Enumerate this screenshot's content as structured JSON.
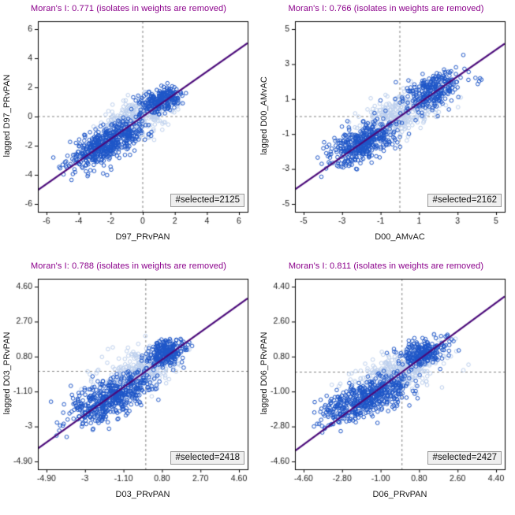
{
  "colors": {
    "title": "#8B008B",
    "regression": "#4B0A7A",
    "ref_line": "#808080",
    "frame": "#000000",
    "tick_text": "#1a1a1a"
  },
  "chart_data": [
    {
      "type": "scatter",
      "title": "Moran's I: 0.771 (isolates in weights are removed)",
      "moran_i": 0.771,
      "xlabel": "D97_PRvPAN",
      "ylabel": "lagged D97_PRvPAN",
      "xlim": [
        -6,
        6
      ],
      "ylim": [
        -6,
        6
      ],
      "xtick_values": [
        -6,
        -4,
        -2,
        0,
        2,
        4,
        6
      ],
      "xtick_labels": [
        "-6",
        "-4",
        "-2",
        "0",
        "2",
        "4",
        "6"
      ],
      "ytick_values": [
        -6,
        -4,
        -2,
        0,
        2,
        4,
        6
      ],
      "ytick_labels": [
        "-6",
        "-4",
        "-2",
        "0",
        "2",
        "4",
        "6"
      ],
      "ref_lines": {
        "x": 0,
        "y": 0
      },
      "regression": {
        "slope": 0.771,
        "intercept": 0
      },
      "grid": false,
      "legend": false,
      "selected_count": 2125,
      "selected_label": "#selected=2125",
      "series": [
        {
          "name": "unselected",
          "color": "#bdd0ee",
          "clusters": [
            {
              "cx": -0.3,
              "cy": 0.0,
              "sx": 1.15,
              "sy": 0.7,
              "rho": 0.5,
              "n": 320
            }
          ]
        },
        {
          "name": "selected",
          "color": "#1e56c8",
          "clusters": [
            {
              "cx": -2.5,
              "cy": -2.0,
              "sx": 1.05,
              "sy": 0.8,
              "rho": 0.6,
              "n": 420
            },
            {
              "cx": 1.2,
              "cy": 1.15,
              "sx": 0.6,
              "sy": 0.42,
              "rho": 0.35,
              "n": 240
            },
            {
              "cx": -0.9,
              "cy": -1.2,
              "sx": 0.7,
              "sy": 0.5,
              "rho": 0.4,
              "n": 90
            }
          ]
        }
      ]
    },
    {
      "type": "scatter",
      "title": "Moran's I: 0.766 (isolates in weights are removed)",
      "moran_i": 0.766,
      "xlabel": "D00_AMvAC",
      "ylabel": "lagged D00_AMvAC",
      "xlim": [
        -5,
        5
      ],
      "ylim": [
        -5,
        5
      ],
      "xtick_values": [
        -5,
        -3,
        -1,
        1,
        3,
        5
      ],
      "xtick_labels": [
        "-5",
        "-3",
        "-1",
        "1",
        "3",
        "5"
      ],
      "ytick_values": [
        -5,
        -3,
        -1,
        1,
        3,
        5
      ],
      "ytick_labels": [
        "-5",
        "-3",
        "-1",
        "1",
        "3",
        "5"
      ],
      "ref_lines": {
        "x": 0,
        "y": 0
      },
      "regression": {
        "slope": 0.766,
        "intercept": 0
      },
      "grid": false,
      "legend": false,
      "selected_count": 2162,
      "selected_label": "#selected=2162",
      "series": [
        {
          "name": "unselected",
          "color": "#bdd0ee",
          "clusters": [
            {
              "cx": 0.0,
              "cy": 0.15,
              "sx": 1.0,
              "sy": 0.65,
              "rho": 0.45,
              "n": 300
            }
          ]
        },
        {
          "name": "selected",
          "color": "#1e56c8",
          "clusters": [
            {
              "cx": -1.9,
              "cy": -1.5,
              "sx": 0.85,
              "sy": 0.6,
              "rho": 0.55,
              "n": 400
            },
            {
              "cx": 1.7,
              "cy": 1.5,
              "sx": 0.75,
              "sy": 0.6,
              "rho": 0.5,
              "n": 260
            },
            {
              "cx": 4.0,
              "cy": 2.1,
              "sx": 0.25,
              "sy": 0.2,
              "rho": 0.0,
              "n": 5
            }
          ]
        }
      ]
    },
    {
      "type": "scatter",
      "title": "Moran's I: 0.788 (isolates in weights are removed)",
      "moran_i": 0.788,
      "xlabel": "D03_PRvPAN",
      "ylabel": "lagged D03_PRvPAN",
      "xlim": [
        -4.9,
        4.6
      ],
      "ylim": [
        -4.9,
        4.6
      ],
      "xtick_values": [
        -4.9,
        -3,
        -1.1,
        0.8,
        2.7,
        4.6
      ],
      "xtick_labels": [
        "-4.90",
        "-3",
        "-1.10",
        "0.80",
        "2.70",
        "4.60"
      ],
      "ytick_values": [
        -4.9,
        -3,
        -1.1,
        0.8,
        2.7,
        4.6
      ],
      "ytick_labels": [
        "-4.90",
        "-3",
        "-1.10",
        "0.80",
        "2.70",
        "4.60"
      ],
      "ref_lines": {
        "x": 0,
        "y": 0
      },
      "regression": {
        "slope": 0.788,
        "intercept": 0
      },
      "grid": false,
      "legend": false,
      "selected_count": 2418,
      "selected_label": "#selected=2418",
      "series": [
        {
          "name": "unselected",
          "color": "#bdd0ee",
          "clusters": [
            {
              "cx": -0.2,
              "cy": 0.05,
              "sx": 1.0,
              "sy": 0.6,
              "rho": 0.45,
              "n": 300
            }
          ]
        },
        {
          "name": "selected",
          "color": "#1e56c8",
          "clusters": [
            {
              "cx": -2.0,
              "cy": -1.6,
              "sx": 0.95,
              "sy": 0.65,
              "rho": 0.55,
              "n": 420
            },
            {
              "cx": 1.0,
              "cy": 1.0,
              "sx": 0.5,
              "sy": 0.35,
              "rho": 0.3,
              "n": 240
            },
            {
              "cx": -0.6,
              "cy": -0.8,
              "sx": 0.6,
              "sy": 0.45,
              "rho": 0.4,
              "n": 80
            }
          ]
        }
      ]
    },
    {
      "type": "scatter",
      "title": "Moran's I: 0.811 (isolates in weights are removed)",
      "moran_i": 0.811,
      "xlabel": "D06_PRvPAN",
      "ylabel": "lagged D06_PRvPAN",
      "xlim": [
        -4.6,
        4.4
      ],
      "ylim": [
        -4.6,
        4.4
      ],
      "xtick_values": [
        -4.6,
        -2.8,
        -1.0,
        0.8,
        2.6,
        4.4
      ],
      "xtick_labels": [
        "-4.60",
        "-2.80",
        "-1.00",
        "0.80",
        "2.60",
        "4.40"
      ],
      "ytick_values": [
        -4.6,
        -2.8,
        -1.0,
        0.8,
        2.6,
        4.4
      ],
      "ytick_labels": [
        "-4.60",
        "-2.80",
        "-1.00",
        "0.80",
        "2.60",
        "4.40"
      ],
      "ref_lines": {
        "x": 0,
        "y": 0
      },
      "regression": {
        "slope": 0.811,
        "intercept": 0
      },
      "grid": false,
      "legend": false,
      "selected_count": 2427,
      "selected_label": "#selected=2427",
      "series": [
        {
          "name": "unselected",
          "color": "#bdd0ee",
          "clusters": [
            {
              "cx": -0.1,
              "cy": 0.1,
              "sx": 1.0,
              "sy": 0.55,
              "rho": 0.45,
              "n": 300
            }
          ]
        },
        {
          "name": "selected",
          "color": "#1e56c8",
          "clusters": [
            {
              "cx": -1.9,
              "cy": -1.5,
              "sx": 0.95,
              "sy": 0.6,
              "rho": 0.55,
              "n": 430
            },
            {
              "cx": 1.0,
              "cy": 1.0,
              "sx": 0.55,
              "sy": 0.35,
              "rho": 0.35,
              "n": 240
            },
            {
              "cx": -0.5,
              "cy": -0.7,
              "sx": 0.6,
              "sy": 0.4,
              "rho": 0.4,
              "n": 80
            }
          ]
        }
      ]
    }
  ]
}
